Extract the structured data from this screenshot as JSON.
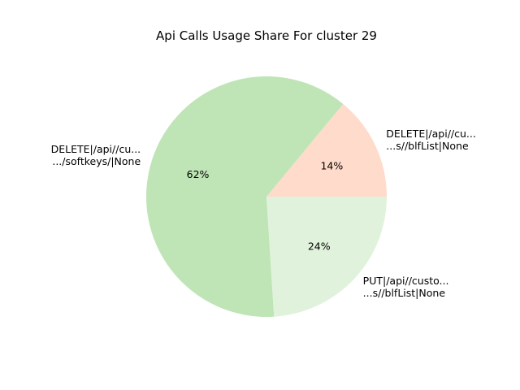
{
  "chart_data": {
    "type": "pie",
    "title": "Api Calls Usage Share For cluster 29",
    "slices": [
      {
        "label_lines": [
          "DELETE|/api//cu...",
          "...s//blfList|None"
        ],
        "value": 14,
        "pct_label": "14%",
        "color": "#fedbcb"
      },
      {
        "label_lines": [
          "DELETE|/api//cu...",
          ".../softkeys/|None"
        ],
        "value": 62,
        "pct_label": "62%",
        "color": "#bfe5b6"
      },
      {
        "label_lines": [
          "PUT|/api//custo...",
          "...s//blfList|None"
        ],
        "value": 24,
        "pct_label": "24%",
        "color": "#e1f2dc"
      }
    ]
  }
}
